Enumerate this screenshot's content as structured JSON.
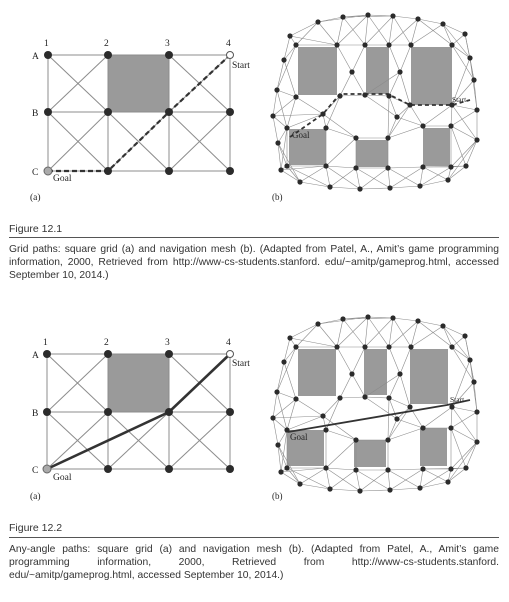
{
  "figure1": {
    "grid": {
      "cols": [
        "1",
        "2",
        "3",
        "4"
      ],
      "rows": [
        "A",
        "B",
        "C"
      ],
      "start": "Start",
      "goal": "Goal",
      "panel": "(a)"
    },
    "mesh": {
      "start": "Start",
      "goal": "Goal",
      "panel": "(b)"
    },
    "caption_title": "Figure 12.1",
    "caption_text": "Grid paths: square grid (a) and navigation mesh (b). (Adapted from Patel, A., Amit’s game programming information, 2000, Retrieved from http://www-cs-students.stanford. edu/~amitp/gameprog.html, accessed September 10, 2014.)"
  },
  "figure2": {
    "grid": {
      "cols": [
        "1",
        "2",
        "3",
        "4"
      ],
      "rows": [
        "A",
        "B",
        "C"
      ],
      "start": "Start",
      "goal": "Goal",
      "panel": "(a)"
    },
    "mesh": {
      "start": "Start",
      "goal": "Goal",
      "panel": "(b)"
    },
    "caption_title": "Figure 12.2",
    "caption_text": "Any-angle paths: square grid (a) and navigation mesh (b). (Adapted from Patel, A., Amit’s game programming information, 2000, Retrieved from http://www-cs-students.stanford. edu/~amitp/gameprog.html, accessed September 10, 2014.)"
  },
  "colors": {
    "obstacle": "#9a9a9a",
    "node": "#2b2b2b",
    "line": "#8c8c8c",
    "path": "#3a3a3a"
  }
}
